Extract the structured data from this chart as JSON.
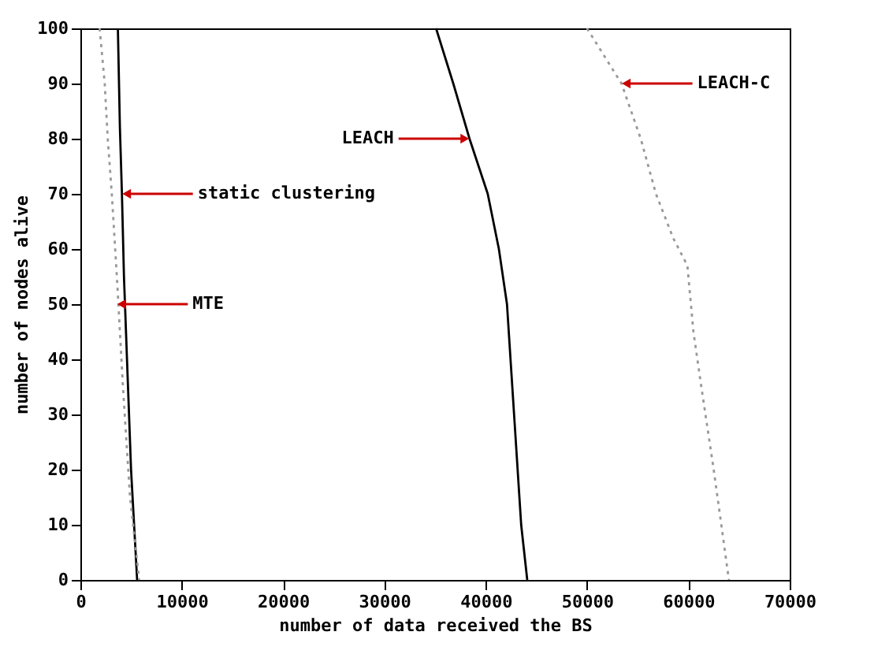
{
  "chart_data": {
    "type": "line",
    "xlabel": "number of data received the BS",
    "ylabel": "number of nodes alive",
    "xlim": [
      0,
      70000
    ],
    "ylim": [
      0,
      100
    ],
    "xticks": [
      0,
      10000,
      20000,
      30000,
      40000,
      50000,
      60000,
      70000
    ],
    "yticks": [
      0,
      10,
      20,
      30,
      40,
      50,
      60,
      70,
      80,
      90,
      100
    ],
    "grid": false,
    "marker": "none",
    "series": [
      {
        "color": "#000000",
        "line_style": "solid",
        "x": [
          3700,
          3900,
          4100,
          4300,
          4600,
          5000,
          5300,
          5600
        ],
        "values": [
          100,
          82,
          70,
          55,
          40,
          20,
          10,
          0
        ]
      },
      {
        "color": "#999999",
        "line_style": "dotted",
        "x": [
          1900,
          2400,
          2700,
          3100,
          3600,
          4200,
          4900,
          5800
        ],
        "values": [
          100,
          90,
          80,
          70,
          55,
          35,
          15,
          0
        ]
      },
      {
        "color": "#000000",
        "line_style": "solid",
        "x": [
          35100,
          36800,
          38400,
          40200,
          41300,
          42100,
          42800,
          43500,
          44100
        ],
        "values": [
          100,
          90,
          80,
          70,
          60,
          50,
          30,
          10,
          0
        ]
      },
      {
        "color": "#999999",
        "line_style": "dotted",
        "x": [
          50000,
          53400,
          55300,
          56800,
          58500,
          59900,
          60500,
          61200,
          62500,
          64000
        ],
        "values": [
          100,
          90,
          80,
          70,
          62,
          57,
          45,
          36,
          20,
          0
        ]
      }
    ],
    "annotations": [
      {
        "text": "static clustering",
        "x": 4100,
        "y": 70
      },
      {
        "text": "MTE",
        "x": 3600,
        "y": 50
      },
      {
        "text": "LEACH",
        "x": 38400,
        "y": 80
      },
      {
        "text": "LEACH-C",
        "x": 53400,
        "y": 90
      }
    ]
  }
}
